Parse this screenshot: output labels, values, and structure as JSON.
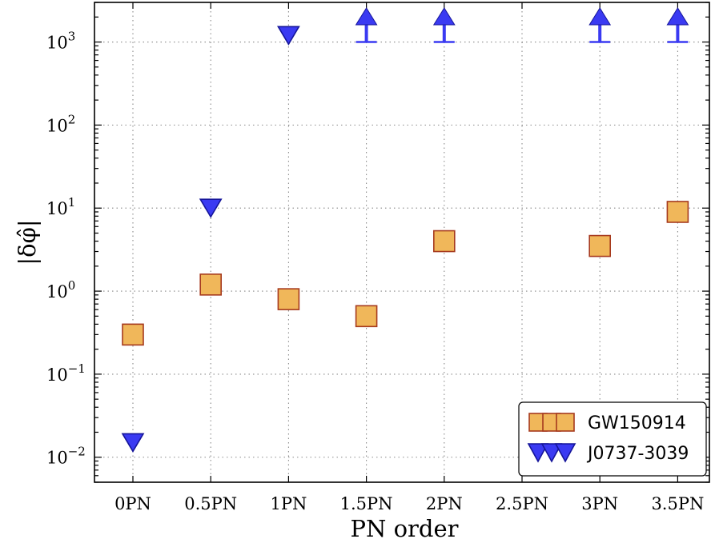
{
  "chart_data": {
    "type": "scatter",
    "xlabel": "PN order",
    "ylabel": "|δφ̂|",
    "yscale": "log",
    "ylim": [
      0.005,
      3000
    ],
    "grid": true,
    "legend_position": "lower-right",
    "categories": [
      "0PN",
      "0.5PN",
      "1PN",
      "1.5PN",
      "2PN",
      "2.5PN",
      "3PN",
      "3.5PN"
    ],
    "y_ticks": [
      {
        "value": 0.01,
        "base": "10",
        "exp": "−2"
      },
      {
        "value": 0.1,
        "base": "10",
        "exp": "−1"
      },
      {
        "value": 1,
        "base": "10",
        "exp": "0"
      },
      {
        "value": 10,
        "base": "10",
        "exp": "1"
      },
      {
        "value": 100,
        "base": "10",
        "exp": "2"
      },
      {
        "value": 1000,
        "base": "10",
        "exp": "3"
      }
    ],
    "series": [
      {
        "name": "GW150914",
        "marker": "square",
        "color": "#f0b75a",
        "edge_color": "#a63a1e",
        "points": [
          {
            "x": "0PN",
            "y": 0.3
          },
          {
            "x": "0.5PN",
            "y": 1.2
          },
          {
            "x": "1PN",
            "y": 0.8
          },
          {
            "x": "1.5PN",
            "y": 0.5
          },
          {
            "x": "2PN",
            "y": 4.0
          },
          {
            "x": "3PN",
            "y": 3.5
          },
          {
            "x": "3.5PN",
            "y": 9.0
          }
        ]
      },
      {
        "name": "J0737-3039",
        "marker": "triangle-down",
        "color": "#3a3af2",
        "edge_color": "#15159a",
        "points": [
          {
            "x": "0PN",
            "y": 0.015
          },
          {
            "x": "0.5PN",
            "y": 10
          },
          {
            "x": "1PN",
            "y": 1200
          }
        ],
        "lower_limits": [
          {
            "x": "1.5PN",
            "y": 1000
          },
          {
            "x": "2PN",
            "y": 1000
          },
          {
            "x": "3PN",
            "y": 1000
          },
          {
            "x": "3.5PN",
            "y": 1000
          }
        ]
      }
    ]
  }
}
